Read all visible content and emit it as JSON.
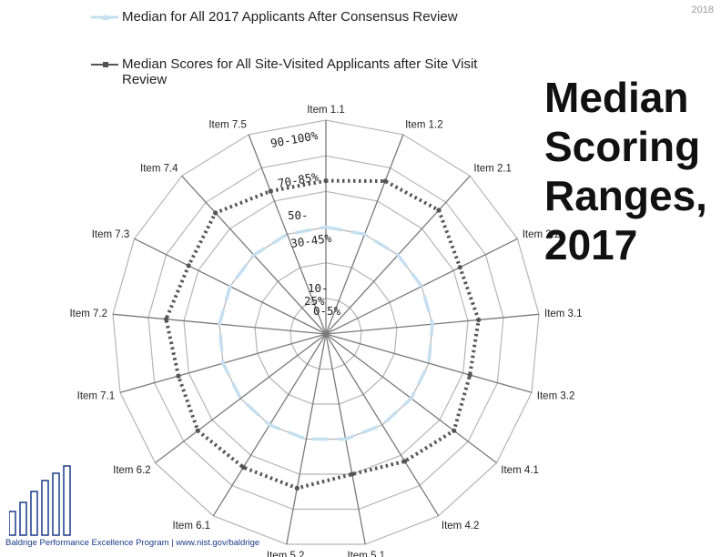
{
  "slide": {
    "year": "2018",
    "title_lines": [
      "Median",
      "Scoring",
      "Ranges,",
      "2017"
    ],
    "footer": "Baldrige Performance Excellence Program | www.nist.gov/baldrige"
  },
  "chart_data": {
    "type": "radar",
    "categories": [
      "Item 1.1",
      "Item 1.2",
      "Item 2.1",
      "Item 2.2",
      "Item 3.1",
      "Item 3.2",
      "Item 4.1",
      "Item 4.2",
      "Item 5.1",
      "Item 5.2",
      "Item 6.1",
      "Item 6.2",
      "Item 7.1",
      "Item 7.2",
      "Item 7.3",
      "Item 7.4",
      "Item 7.5"
    ],
    "ring_labels": [
      "0-5%",
      "10-25%",
      "30-45%",
      "50-",
      "70-85%",
      "90-100%"
    ],
    "rlim": [
      0,
      6
    ],
    "legend_position": "top-left",
    "grid": true,
    "series": [
      {
        "name": "Median for All 2017 Applicants After Consensus Review",
        "color": "#c5dff0",
        "style": "dashed",
        "values": [
          3,
          3,
          3,
          3,
          3,
          3,
          3,
          3,
          3,
          3,
          3,
          3,
          3,
          3,
          3,
          3,
          3
        ]
      },
      {
        "name": "Median Scores for All Site-Visited Applicants after Site Visit Review",
        "color": "#555555",
        "style": "dotted",
        "values": [
          4.3,
          4.6,
          4.7,
          4.2,
          4.3,
          4.2,
          4.5,
          4.2,
          4.0,
          4.4,
          4.4,
          4.5,
          4.3,
          4.5,
          4.3,
          4.6,
          4.3
        ]
      }
    ]
  }
}
